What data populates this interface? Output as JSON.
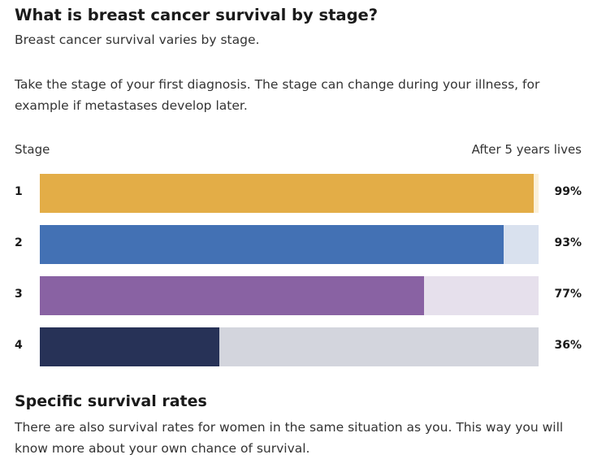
{
  "heading": "What is breast cancer survival by stage?",
  "subheading": "Breast cancer survival varies by stage.",
  "intro": "Take the stage of your first diagnosis. The stage can change during your illness, for example if metastases develop later.",
  "column_headers": {
    "stage": "Stage",
    "after": "After 5 years lives"
  },
  "colors": {
    "stage1": "#E3AD47",
    "stage1_track": "#FBF0D8",
    "stage2": "#4371B4",
    "stage2_track": "#D9E1EE",
    "stage3": "#8962A3",
    "stage3_track": "#E6E0EC",
    "stage4": "#273257",
    "stage4_track": "#D3D5DD"
  },
  "chart_data": {
    "type": "bar",
    "orientation": "horizontal",
    "categories": [
      "1",
      "2",
      "3",
      "4"
    ],
    "values": [
      99,
      93,
      77,
      36
    ],
    "value_labels": [
      "99%",
      "93%",
      "77%",
      "36%"
    ],
    "xlim": [
      0,
      100
    ],
    "xlabel": "After 5 years lives",
    "ylabel": "Stage",
    "grid": false
  },
  "section2": {
    "heading": "Specific survival rates",
    "text": "There are also survival rates for women in the same situation as you. This way you will know more about your own chance of survival."
  }
}
